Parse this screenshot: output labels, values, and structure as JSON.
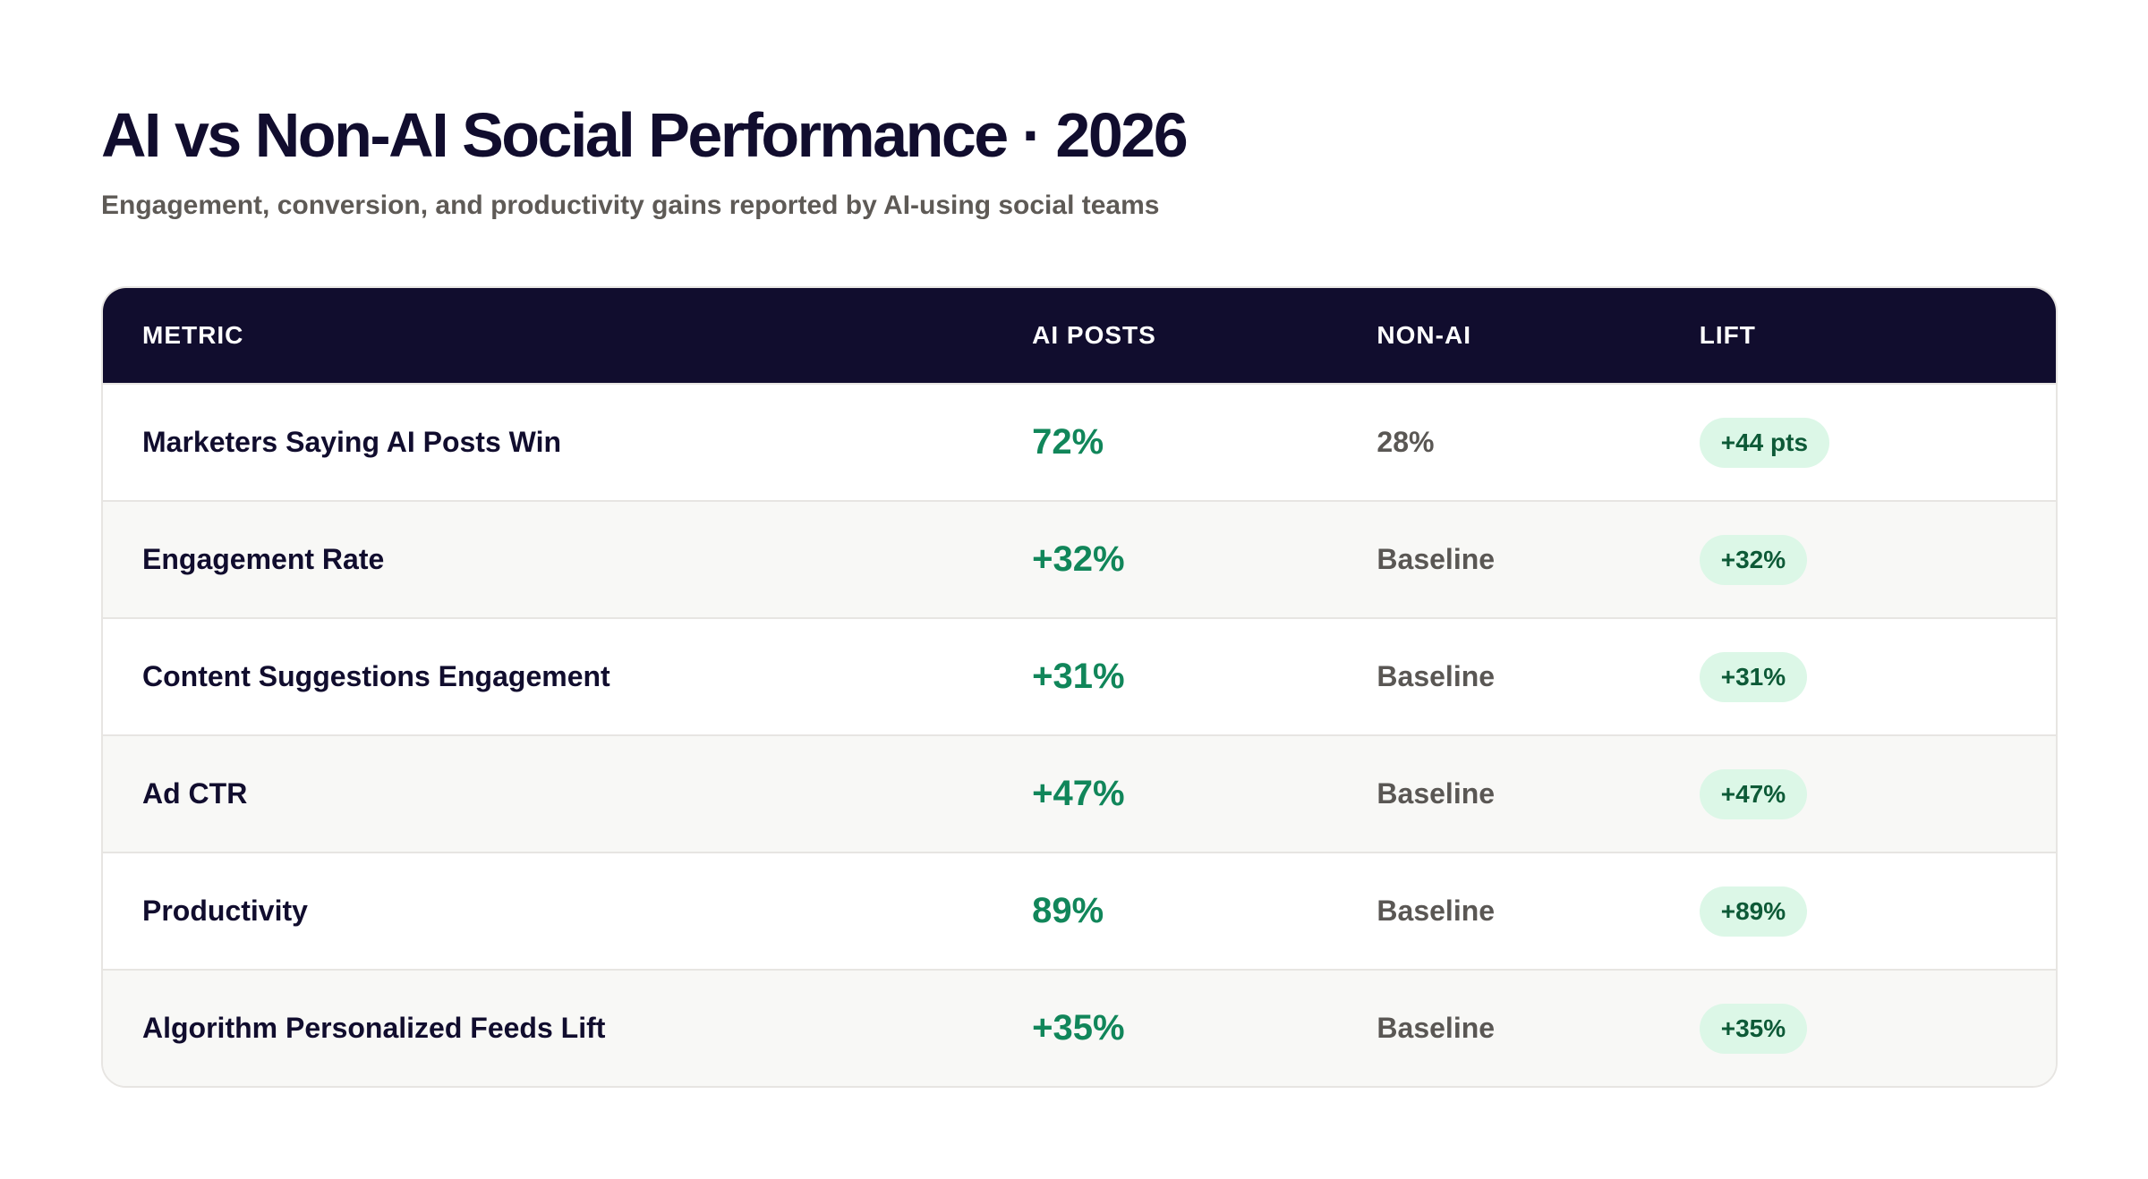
{
  "header": {
    "title": "AI vs Non-AI Social Performance · 2026",
    "subtitle": "Engagement, conversion, and productivity gains reported by AI-using social teams"
  },
  "table": {
    "columns": [
      "METRIC",
      "AI POSTS",
      "NON-AI",
      "LIFT"
    ],
    "rows": [
      {
        "metric": "Marketers Saying AI Posts Win",
        "ai": "72%",
        "nonai": "28%",
        "lift": "+44 pts"
      },
      {
        "metric": "Engagement Rate",
        "ai": "+32%",
        "nonai": "Baseline",
        "lift": "+32%"
      },
      {
        "metric": "Content Suggestions Engagement",
        "ai": "+31%",
        "nonai": "Baseline",
        "lift": "+31%"
      },
      {
        "metric": "Ad CTR",
        "ai": "+47%",
        "nonai": "Baseline",
        "lift": "+47%"
      },
      {
        "metric": "Productivity",
        "ai": "89%",
        "nonai": "Baseline",
        "lift": "+89%"
      },
      {
        "metric": "Algorithm Personalized Feeds Lift",
        "ai": "+35%",
        "nonai": "Baseline",
        "lift": "+35%"
      }
    ]
  },
  "colors": {
    "navy": "#110d2e",
    "accent_green": "#11865a",
    "pill_bg": "#dcf7e7",
    "pill_text": "#0d5a37",
    "muted": "#5a5754"
  }
}
